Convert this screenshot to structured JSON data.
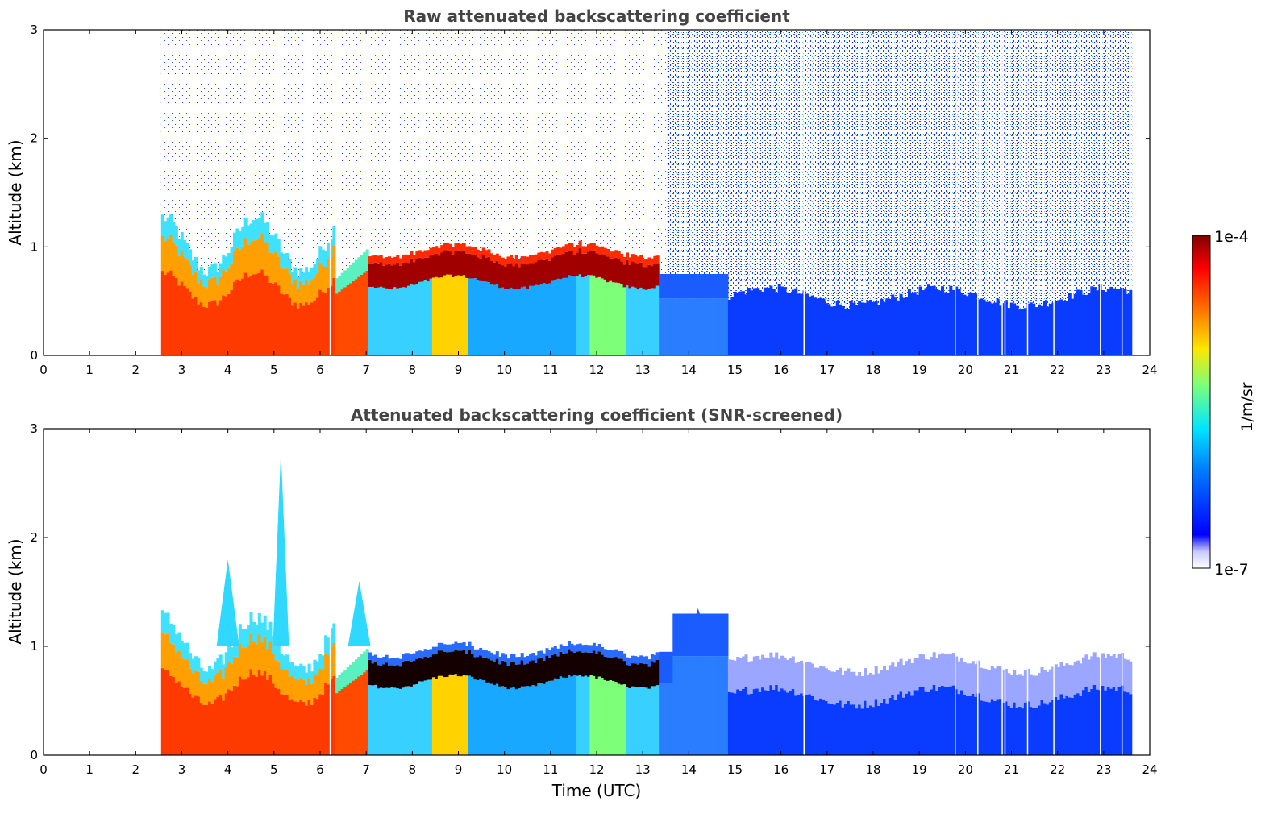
{
  "chart_data": [
    {
      "type": "heatmap",
      "title": "Raw attenuated backscattering coefficient",
      "xlabel": "",
      "ylabel": "Altitude (km)",
      "xlim": [
        0,
        24
      ],
      "ylim": [
        0,
        3
      ],
      "xticks": [
        "0",
        "1",
        "2",
        "3",
        "4",
        "5",
        "6",
        "7",
        "8",
        "9",
        "10",
        "11",
        "12",
        "13",
        "14",
        "15",
        "16",
        "17",
        "18",
        "19",
        "20",
        "21",
        "22",
        "23",
        "24"
      ],
      "yticks": [
        "0",
        "1",
        "2",
        "3"
      ],
      "variant": "raw",
      "data_start_hour": 2.55,
      "data_end_hour": 23.6,
      "gap_hours": [
        6.22,
        16.5,
        19.78,
        20.27,
        20.8,
        20.86,
        21.35,
        21.92,
        22.93,
        23.4
      ],
      "features": {
        "boundary_layer_top_km": [
          [
            2.55,
            0.9
          ],
          [
            4.0,
            1.0
          ],
          [
            5.5,
            0.9
          ],
          [
            6.3,
            0.65
          ],
          [
            7.0,
            0.95
          ],
          [
            9.0,
            1.0
          ],
          [
            12.0,
            0.9
          ],
          [
            13.0,
            0.85
          ],
          [
            14.0,
            0.6
          ],
          [
            16.0,
            0.5
          ],
          [
            23.6,
            0.45
          ]
        ],
        "cloud_layer": {
          "start_hour": 7.0,
          "end_hour": 13.0,
          "base_km": 0.65,
          "top_km": 0.88
        }
      }
    },
    {
      "type": "heatmap",
      "title": "Attenuated backscattering coefficient (SNR-screened)",
      "xlabel": "Time (UTC)",
      "ylabel": "Altitude (km)",
      "xlim": [
        0,
        24
      ],
      "ylim": [
        0,
        3
      ],
      "xticks": [
        "0",
        "1",
        "2",
        "3",
        "4",
        "5",
        "6",
        "7",
        "8",
        "9",
        "10",
        "11",
        "12",
        "13",
        "14",
        "15",
        "16",
        "17",
        "18",
        "19",
        "20",
        "21",
        "22",
        "23",
        "24"
      ],
      "yticks": [
        "0",
        "1",
        "2",
        "3"
      ],
      "variant": "screened",
      "data_start_hour": 2.55,
      "data_end_hour": 23.6,
      "gap_hours": [
        6.22,
        16.5,
        19.78,
        20.27,
        20.8,
        20.86,
        21.35,
        21.92,
        22.93,
        23.4
      ],
      "features": {
        "peaks_km": [
          [
            4.0,
            1.8
          ],
          [
            5.15,
            2.8
          ],
          [
            6.85,
            1.6
          ],
          [
            14.2,
            1.35
          ]
        ],
        "cloud_layer": {
          "start_hour": 7.0,
          "end_hour": 13.0,
          "base_km": 0.65,
          "top_km": 0.88
        }
      }
    }
  ],
  "colorbar": {
    "max_label": "1e-4",
    "min_label": "1e-7",
    "unit_label": "1/m/sr",
    "colormap": [
      "#ffffff",
      "#0000ff",
      "#00c8ff",
      "#7dff7a",
      "#ffe600",
      "#ff6a00",
      "#ff0000",
      "#800000"
    ]
  }
}
